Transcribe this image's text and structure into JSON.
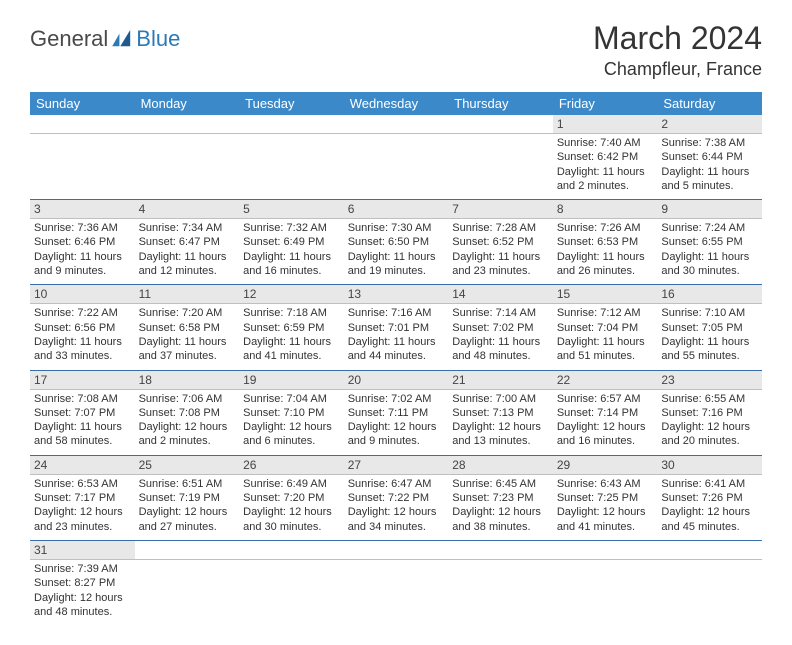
{
  "logo": {
    "word1": "General",
    "word2": "Blue"
  },
  "title": "March 2024",
  "location": "Champfleur, France",
  "colors": {
    "header_bg": "#3b89c9",
    "header_fg": "#ffffff",
    "daynum_bg": "#e8e8e8",
    "row_divider": "#3b6ea8",
    "logo_accent": "#2b7ab8",
    "logo_text": "#4a4a4a"
  },
  "day_headers": [
    "Sunday",
    "Monday",
    "Tuesday",
    "Wednesday",
    "Thursday",
    "Friday",
    "Saturday"
  ],
  "weeks": [
    {
      "nums": [
        "",
        "",
        "",
        "",
        "",
        "1",
        "2"
      ],
      "cells": [
        {},
        {},
        {},
        {},
        {},
        {
          "sunrise": "Sunrise: 7:40 AM",
          "sunset": "Sunset: 6:42 PM",
          "daylight": "Daylight: 11 hours and 2 minutes."
        },
        {
          "sunrise": "Sunrise: 7:38 AM",
          "sunset": "Sunset: 6:44 PM",
          "daylight": "Daylight: 11 hours and 5 minutes."
        }
      ]
    },
    {
      "nums": [
        "3",
        "4",
        "5",
        "6",
        "7",
        "8",
        "9"
      ],
      "cells": [
        {
          "sunrise": "Sunrise: 7:36 AM",
          "sunset": "Sunset: 6:46 PM",
          "daylight": "Daylight: 11 hours and 9 minutes."
        },
        {
          "sunrise": "Sunrise: 7:34 AM",
          "sunset": "Sunset: 6:47 PM",
          "daylight": "Daylight: 11 hours and 12 minutes."
        },
        {
          "sunrise": "Sunrise: 7:32 AM",
          "sunset": "Sunset: 6:49 PM",
          "daylight": "Daylight: 11 hours and 16 minutes."
        },
        {
          "sunrise": "Sunrise: 7:30 AM",
          "sunset": "Sunset: 6:50 PM",
          "daylight": "Daylight: 11 hours and 19 minutes."
        },
        {
          "sunrise": "Sunrise: 7:28 AM",
          "sunset": "Sunset: 6:52 PM",
          "daylight": "Daylight: 11 hours and 23 minutes."
        },
        {
          "sunrise": "Sunrise: 7:26 AM",
          "sunset": "Sunset: 6:53 PM",
          "daylight": "Daylight: 11 hours and 26 minutes."
        },
        {
          "sunrise": "Sunrise: 7:24 AM",
          "sunset": "Sunset: 6:55 PM",
          "daylight": "Daylight: 11 hours and 30 minutes."
        }
      ]
    },
    {
      "nums": [
        "10",
        "11",
        "12",
        "13",
        "14",
        "15",
        "16"
      ],
      "cells": [
        {
          "sunrise": "Sunrise: 7:22 AM",
          "sunset": "Sunset: 6:56 PM",
          "daylight": "Daylight: 11 hours and 33 minutes."
        },
        {
          "sunrise": "Sunrise: 7:20 AM",
          "sunset": "Sunset: 6:58 PM",
          "daylight": "Daylight: 11 hours and 37 minutes."
        },
        {
          "sunrise": "Sunrise: 7:18 AM",
          "sunset": "Sunset: 6:59 PM",
          "daylight": "Daylight: 11 hours and 41 minutes."
        },
        {
          "sunrise": "Sunrise: 7:16 AM",
          "sunset": "Sunset: 7:01 PM",
          "daylight": "Daylight: 11 hours and 44 minutes."
        },
        {
          "sunrise": "Sunrise: 7:14 AM",
          "sunset": "Sunset: 7:02 PM",
          "daylight": "Daylight: 11 hours and 48 minutes."
        },
        {
          "sunrise": "Sunrise: 7:12 AM",
          "sunset": "Sunset: 7:04 PM",
          "daylight": "Daylight: 11 hours and 51 minutes."
        },
        {
          "sunrise": "Sunrise: 7:10 AM",
          "sunset": "Sunset: 7:05 PM",
          "daylight": "Daylight: 11 hours and 55 minutes."
        }
      ]
    },
    {
      "nums": [
        "17",
        "18",
        "19",
        "20",
        "21",
        "22",
        "23"
      ],
      "cells": [
        {
          "sunrise": "Sunrise: 7:08 AM",
          "sunset": "Sunset: 7:07 PM",
          "daylight": "Daylight: 11 hours and 58 minutes."
        },
        {
          "sunrise": "Sunrise: 7:06 AM",
          "sunset": "Sunset: 7:08 PM",
          "daylight": "Daylight: 12 hours and 2 minutes."
        },
        {
          "sunrise": "Sunrise: 7:04 AM",
          "sunset": "Sunset: 7:10 PM",
          "daylight": "Daylight: 12 hours and 6 minutes."
        },
        {
          "sunrise": "Sunrise: 7:02 AM",
          "sunset": "Sunset: 7:11 PM",
          "daylight": "Daylight: 12 hours and 9 minutes."
        },
        {
          "sunrise": "Sunrise: 7:00 AM",
          "sunset": "Sunset: 7:13 PM",
          "daylight": "Daylight: 12 hours and 13 minutes."
        },
        {
          "sunrise": "Sunrise: 6:57 AM",
          "sunset": "Sunset: 7:14 PM",
          "daylight": "Daylight: 12 hours and 16 minutes."
        },
        {
          "sunrise": "Sunrise: 6:55 AM",
          "sunset": "Sunset: 7:16 PM",
          "daylight": "Daylight: 12 hours and 20 minutes."
        }
      ]
    },
    {
      "nums": [
        "24",
        "25",
        "26",
        "27",
        "28",
        "29",
        "30"
      ],
      "cells": [
        {
          "sunrise": "Sunrise: 6:53 AM",
          "sunset": "Sunset: 7:17 PM",
          "daylight": "Daylight: 12 hours and 23 minutes."
        },
        {
          "sunrise": "Sunrise: 6:51 AM",
          "sunset": "Sunset: 7:19 PM",
          "daylight": "Daylight: 12 hours and 27 minutes."
        },
        {
          "sunrise": "Sunrise: 6:49 AM",
          "sunset": "Sunset: 7:20 PM",
          "daylight": "Daylight: 12 hours and 30 minutes."
        },
        {
          "sunrise": "Sunrise: 6:47 AM",
          "sunset": "Sunset: 7:22 PM",
          "daylight": "Daylight: 12 hours and 34 minutes."
        },
        {
          "sunrise": "Sunrise: 6:45 AM",
          "sunset": "Sunset: 7:23 PM",
          "daylight": "Daylight: 12 hours and 38 minutes."
        },
        {
          "sunrise": "Sunrise: 6:43 AM",
          "sunset": "Sunset: 7:25 PM",
          "daylight": "Daylight: 12 hours and 41 minutes."
        },
        {
          "sunrise": "Sunrise: 6:41 AM",
          "sunset": "Sunset: 7:26 PM",
          "daylight": "Daylight: 12 hours and 45 minutes."
        }
      ]
    },
    {
      "nums": [
        "31",
        "",
        "",
        "",
        "",
        "",
        ""
      ],
      "cells": [
        {
          "sunrise": "Sunrise: 7:39 AM",
          "sunset": "Sunset: 8:27 PM",
          "daylight": "Daylight: 12 hours and 48 minutes."
        },
        {},
        {},
        {},
        {},
        {},
        {}
      ]
    }
  ]
}
